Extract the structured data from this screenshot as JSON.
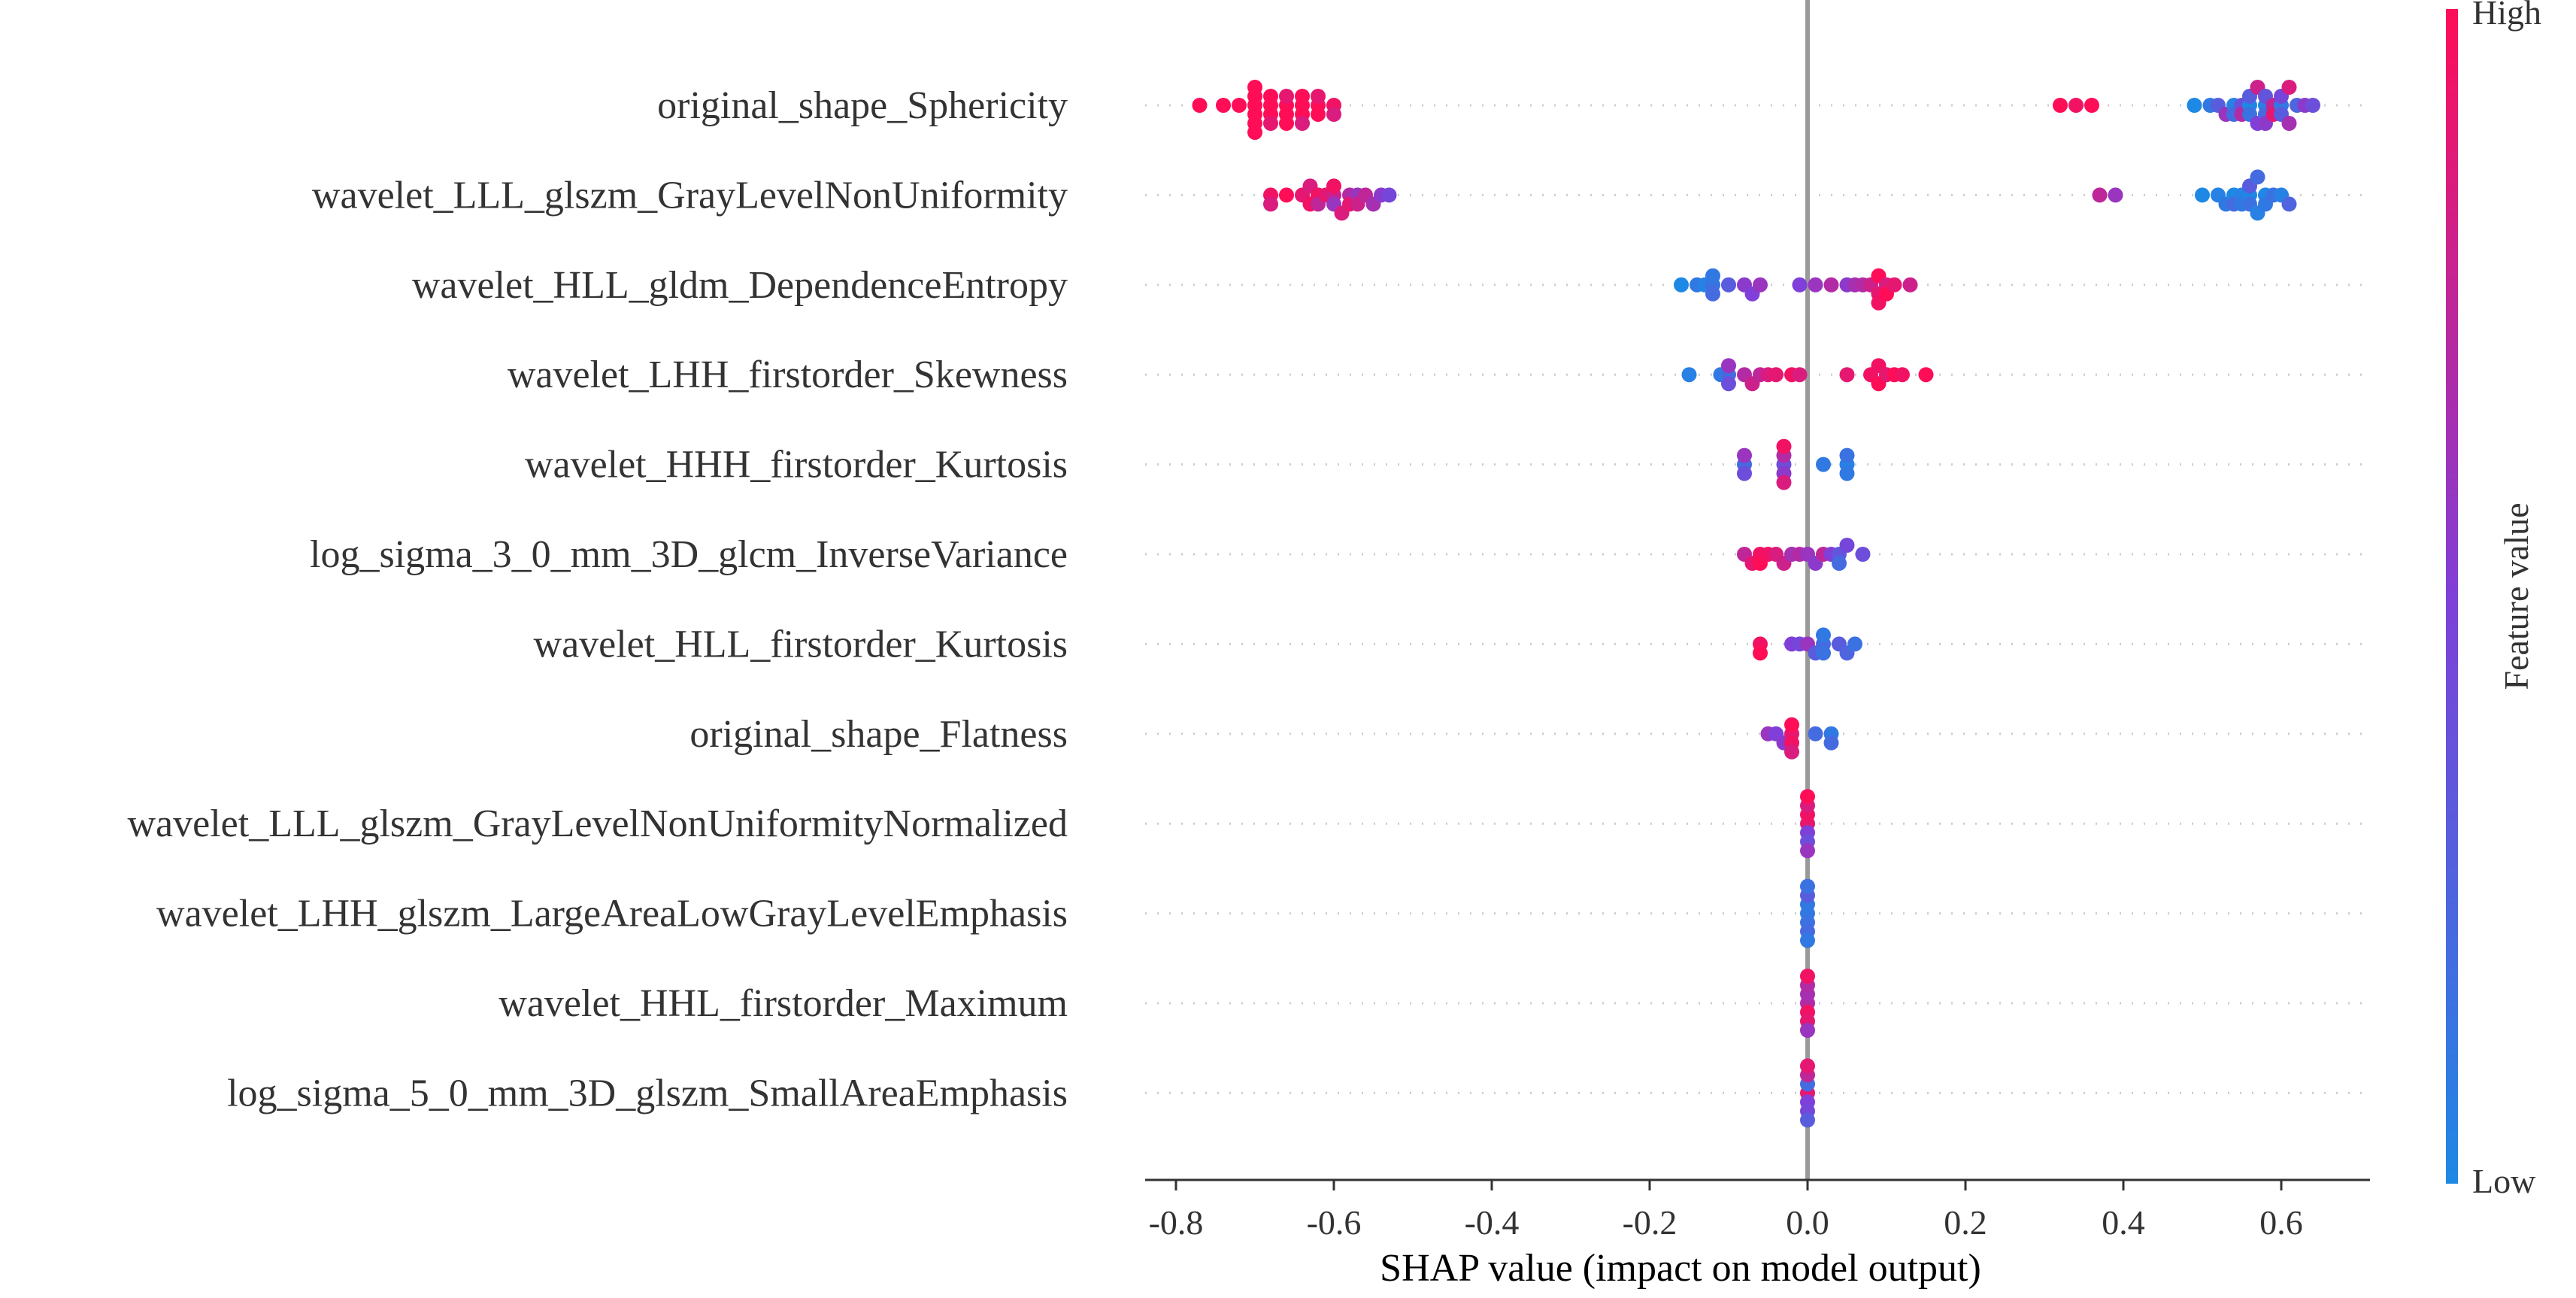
{
  "chart_data": {
    "type": "scatter",
    "subtype": "shap-beeswarm",
    "title": "",
    "xlabel": "SHAP value (impact on model output)",
    "ylabel": "",
    "xlim": [
      -0.84,
      0.72
    ],
    "x_ticks": [
      -0.8,
      -0.6,
      -0.4,
      -0.2,
      0.0,
      0.2,
      0.4,
      0.6
    ],
    "x_tick_labels": [
      "-0.8",
      "-0.6",
      "-0.4",
      "-0.2",
      "0.0",
      "0.2",
      "0.4",
      "0.6"
    ],
    "zero_line": true,
    "colorbar": {
      "title": "Feature value",
      "high_label": "High",
      "low_label": "Low",
      "low_color": "#1E88E5",
      "high_color": "#FF0D57"
    },
    "features": [
      {
        "name": "original_shape_Sphericity",
        "points": [
          [
            -0.77,
            1.0
          ],
          [
            -0.74,
            1.0
          ],
          [
            -0.72,
            1.0
          ],
          [
            -0.7,
            1.0
          ],
          [
            -0.7,
            1.0
          ],
          [
            -0.7,
            1.0
          ],
          [
            -0.7,
            1.0
          ],
          [
            -0.7,
            1.0
          ],
          [
            -0.7,
            1.0
          ],
          [
            -0.68,
            1.0
          ],
          [
            -0.68,
            1.0
          ],
          [
            -0.68,
            1.0
          ],
          [
            -0.68,
            0.9
          ],
          [
            -0.66,
            1.0
          ],
          [
            -0.66,
            1.0
          ],
          [
            -0.66,
            0.9
          ],
          [
            -0.66,
            1.0
          ],
          [
            -0.64,
            1.0
          ],
          [
            -0.64,
            1.0
          ],
          [
            -0.64,
            1.0
          ],
          [
            -0.64,
            0.85
          ],
          [
            -0.62,
            1.0
          ],
          [
            -0.62,
            1.0
          ],
          [
            -0.62,
            0.9
          ],
          [
            -0.6,
            0.95
          ],
          [
            -0.6,
            0.85
          ],
          [
            0.32,
            1.0
          ],
          [
            0.34,
            0.95
          ],
          [
            0.36,
            1.0
          ],
          [
            0.49,
            0.0
          ],
          [
            0.51,
            0.1
          ],
          [
            0.52,
            0.3
          ],
          [
            0.53,
            0.6
          ],
          [
            0.54,
            0.05
          ],
          [
            0.54,
            0.2
          ],
          [
            0.55,
            0.4
          ],
          [
            0.55,
            0.7
          ],
          [
            0.56,
            0.0
          ],
          [
            0.56,
            0.15
          ],
          [
            0.56,
            0.3
          ],
          [
            0.57,
            0.5
          ],
          [
            0.57,
            0.8
          ],
          [
            0.58,
            0.05
          ],
          [
            0.58,
            0.2
          ],
          [
            0.58,
            0.35
          ],
          [
            0.58,
            0.55
          ],
          [
            0.59,
            0.75
          ],
          [
            0.59,
            0.9
          ],
          [
            0.6,
            0.1
          ],
          [
            0.6,
            0.3
          ],
          [
            0.6,
            0.45
          ],
          [
            0.61,
            0.65
          ],
          [
            0.61,
            0.85
          ],
          [
            0.62,
            0.25
          ],
          [
            0.63,
            0.55
          ],
          [
            0.64,
            0.4
          ]
        ]
      },
      {
        "name": "wavelet_LLL_glszm_GrayLevelNonUniformity",
        "points": [
          [
            -0.68,
            0.95
          ],
          [
            -0.68,
            0.85
          ],
          [
            -0.66,
            1.0
          ],
          [
            -0.64,
            0.9
          ],
          [
            -0.63,
            0.95
          ],
          [
            -0.63,
            0.85
          ],
          [
            -0.62,
            0.95
          ],
          [
            -0.62,
            0.75
          ],
          [
            -0.61,
            0.9
          ],
          [
            -0.6,
            0.8
          ],
          [
            -0.6,
            0.6
          ],
          [
            -0.6,
            0.95
          ],
          [
            -0.59,
            0.85
          ],
          [
            -0.58,
            0.7
          ],
          [
            -0.58,
            0.9
          ],
          [
            -0.57,
            0.6
          ],
          [
            -0.57,
            0.8
          ],
          [
            -0.56,
            0.75
          ],
          [
            -0.55,
            0.65
          ],
          [
            -0.54,
            0.55
          ],
          [
            -0.53,
            0.45
          ],
          [
            0.37,
            0.75
          ],
          [
            0.39,
            0.6
          ],
          [
            0.5,
            0.0
          ],
          [
            0.52,
            0.05
          ],
          [
            0.53,
            0.1
          ],
          [
            0.54,
            0.0
          ],
          [
            0.54,
            0.2
          ],
          [
            0.55,
            0.05
          ],
          [
            0.55,
            0.1
          ],
          [
            0.56,
            0.0
          ],
          [
            0.56,
            0.15
          ],
          [
            0.56,
            0.3
          ],
          [
            0.57,
            0.05
          ],
          [
            0.57,
            0.2
          ],
          [
            0.58,
            0.0
          ],
          [
            0.58,
            0.1
          ],
          [
            0.59,
            0.15
          ],
          [
            0.6,
            0.05
          ],
          [
            0.61,
            0.25
          ]
        ]
      },
      {
        "name": "wavelet_HLL_gldm_DependenceEntropy",
        "points": [
          [
            -0.16,
            0.0
          ],
          [
            -0.14,
            0.1
          ],
          [
            -0.13,
            0.05
          ],
          [
            -0.12,
            0.15
          ],
          [
            -0.12,
            0.2
          ],
          [
            -0.12,
            0.1
          ],
          [
            -0.1,
            0.3
          ],
          [
            -0.08,
            0.55
          ],
          [
            -0.07,
            0.5
          ],
          [
            -0.06,
            0.6
          ],
          [
            -0.01,
            0.5
          ],
          [
            0.01,
            0.6
          ],
          [
            0.03,
            0.7
          ],
          [
            0.05,
            0.55
          ],
          [
            0.06,
            0.65
          ],
          [
            0.07,
            0.7
          ],
          [
            0.08,
            0.8
          ],
          [
            0.09,
            0.9
          ],
          [
            0.09,
            1.0
          ],
          [
            0.09,
            0.95
          ],
          [
            0.1,
            0.85
          ],
          [
            0.1,
            1.0
          ],
          [
            0.11,
            0.9
          ],
          [
            0.13,
            0.8
          ]
        ]
      },
      {
        "name": "wavelet_LHH_firstorder_Skewness",
        "points": [
          [
            -0.15,
            0.05
          ],
          [
            -0.11,
            0.1
          ],
          [
            -0.1,
            0.2
          ],
          [
            -0.1,
            0.4
          ],
          [
            -0.1,
            0.6
          ],
          [
            -0.08,
            0.7
          ],
          [
            -0.07,
            0.8
          ],
          [
            -0.06,
            0.75
          ],
          [
            -0.05,
            0.85
          ],
          [
            -0.04,
            0.9
          ],
          [
            -0.02,
            0.95
          ],
          [
            -0.01,
            0.85
          ],
          [
            0.05,
            0.9
          ],
          [
            0.08,
            0.95
          ],
          [
            0.09,
            1.0
          ],
          [
            0.09,
            0.95
          ],
          [
            0.1,
            0.9
          ],
          [
            0.11,
            1.0
          ],
          [
            0.12,
            0.95
          ],
          [
            0.15,
            1.0
          ]
        ]
      },
      {
        "name": "wavelet_HHH_firstorder_Kurtosis",
        "points": [
          [
            -0.08,
            0.2
          ],
          [
            -0.08,
            0.4
          ],
          [
            -0.08,
            0.6
          ],
          [
            -0.03,
            0.4
          ],
          [
            -0.03,
            0.55
          ],
          [
            -0.03,
            0.7
          ],
          [
            -0.03,
            0.85
          ],
          [
            -0.03,
            0.95
          ],
          [
            0.02,
            0.1
          ],
          [
            0.05,
            0.05
          ],
          [
            0.05,
            0.1
          ],
          [
            0.05,
            0.15
          ]
        ]
      },
      {
        "name": "log_sigma_3_0_mm_3D_glcm_InverseVariance",
        "points": [
          [
            -0.08,
            0.75
          ],
          [
            -0.07,
            0.9
          ],
          [
            -0.06,
            0.95
          ],
          [
            -0.06,
            1.0
          ],
          [
            -0.05,
            0.95
          ],
          [
            -0.04,
            0.85
          ],
          [
            -0.03,
            0.8
          ],
          [
            -0.02,
            0.65
          ],
          [
            -0.01,
            0.7
          ],
          [
            0.0,
            0.6
          ],
          [
            0.01,
            0.55
          ],
          [
            0.02,
            0.75
          ],
          [
            0.03,
            0.5
          ],
          [
            0.04,
            0.35
          ],
          [
            0.04,
            0.2
          ],
          [
            0.05,
            0.45
          ],
          [
            0.07,
            0.4
          ]
        ]
      },
      {
        "name": "wavelet_HLL_firstorder_Kurtosis",
        "points": [
          [
            -0.06,
            0.95
          ],
          [
            -0.06,
            1.0
          ],
          [
            -0.02,
            0.5
          ],
          [
            -0.01,
            0.45
          ],
          [
            0.0,
            0.6
          ],
          [
            0.01,
            0.3
          ],
          [
            0.02,
            0.2
          ],
          [
            0.02,
            0.15
          ],
          [
            0.02,
            0.1
          ],
          [
            0.04,
            0.3
          ],
          [
            0.05,
            0.25
          ],
          [
            0.06,
            0.15
          ]
        ]
      },
      {
        "name": "original_shape_Flatness",
        "points": [
          [
            -0.05,
            0.6
          ],
          [
            -0.04,
            0.5
          ],
          [
            -0.03,
            0.55
          ],
          [
            -0.02,
            0.9
          ],
          [
            -0.02,
            0.95
          ],
          [
            -0.02,
            1.0
          ],
          [
            -0.02,
            0.85
          ],
          [
            0.01,
            0.2
          ],
          [
            0.03,
            0.1
          ],
          [
            0.03,
            0.2
          ]
        ]
      },
      {
        "name": "wavelet_LLL_glszm_GrayLevelNonUniformityNormalized",
        "points": [
          [
            0.0,
            0.9
          ],
          [
            0.0,
            0.5
          ],
          [
            0.0,
            0.95
          ],
          [
            0.0,
            0.4
          ],
          [
            0.0,
            0.85
          ],
          [
            0.0,
            0.6
          ],
          [
            0.0,
            1.0
          ]
        ]
      },
      {
        "name": "wavelet_LHH_glszm_LargeAreaLowGrayLevelEmphasis",
        "points": [
          [
            0.0,
            0.1
          ],
          [
            0.0,
            0.15
          ],
          [
            0.0,
            0.1
          ],
          [
            0.0,
            0.2
          ],
          [
            0.0,
            0.3
          ],
          [
            0.0,
            0.1
          ],
          [
            0.0,
            0.15
          ]
        ]
      },
      {
        "name": "wavelet_HHL_firstorder_Maximum",
        "points": [
          [
            0.0,
            0.7
          ],
          [
            0.0,
            0.95
          ],
          [
            0.0,
            0.65
          ],
          [
            0.0,
            0.9
          ],
          [
            0.0,
            0.7
          ],
          [
            0.0,
            0.6
          ],
          [
            0.0,
            0.95
          ]
        ]
      },
      {
        "name": "log_sigma_5_0_mm_3D_glszm_SmallAreaEmphasis",
        "points": [
          [
            0.0,
            0.9
          ],
          [
            0.0,
            0.5
          ],
          [
            0.0,
            0.2
          ],
          [
            0.0,
            0.45
          ],
          [
            0.0,
            0.75
          ],
          [
            0.0,
            0.3
          ],
          [
            0.0,
            0.9
          ]
        ]
      }
    ]
  }
}
